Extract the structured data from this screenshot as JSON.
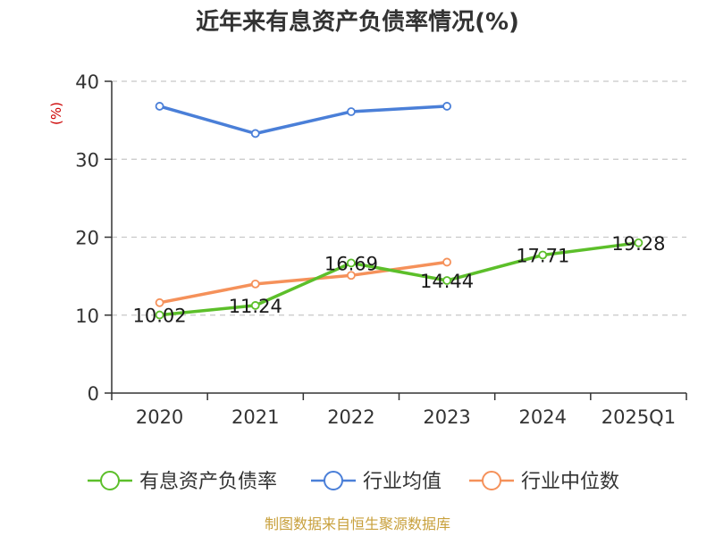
{
  "chart_data": {
    "type": "line",
    "title": "近年来有息资产负债率情况(%)",
    "ylabel": "(%)",
    "xlabel": "",
    "categories": [
      "2020",
      "2021",
      "2022",
      "2023",
      "2024",
      "2025Q1"
    ],
    "ylim": [
      0,
      40
    ],
    "yticks": [
      0,
      10,
      20,
      30,
      40
    ],
    "grid": true,
    "legend_position": "bottom",
    "series": [
      {
        "name": "有息资产负债率",
        "color": "#5cbf2a",
        "values": [
          10.02,
          11.24,
          16.69,
          14.44,
          17.71,
          19.28
        ],
        "labels": [
          "10.02",
          "11.24",
          "16.69",
          "14.44",
          "17.71",
          "19.28"
        ]
      },
      {
        "name": "行业均值",
        "color": "#4a7fd8",
        "values": [
          36.8,
          33.3,
          36.1,
          36.8,
          null,
          null
        ]
      },
      {
        "name": "行业中位数",
        "color": "#f5915a",
        "values": [
          11.6,
          14.0,
          15.1,
          16.8,
          null,
          null
        ]
      }
    ],
    "source": "制图数据来自恒生聚源数据库"
  }
}
